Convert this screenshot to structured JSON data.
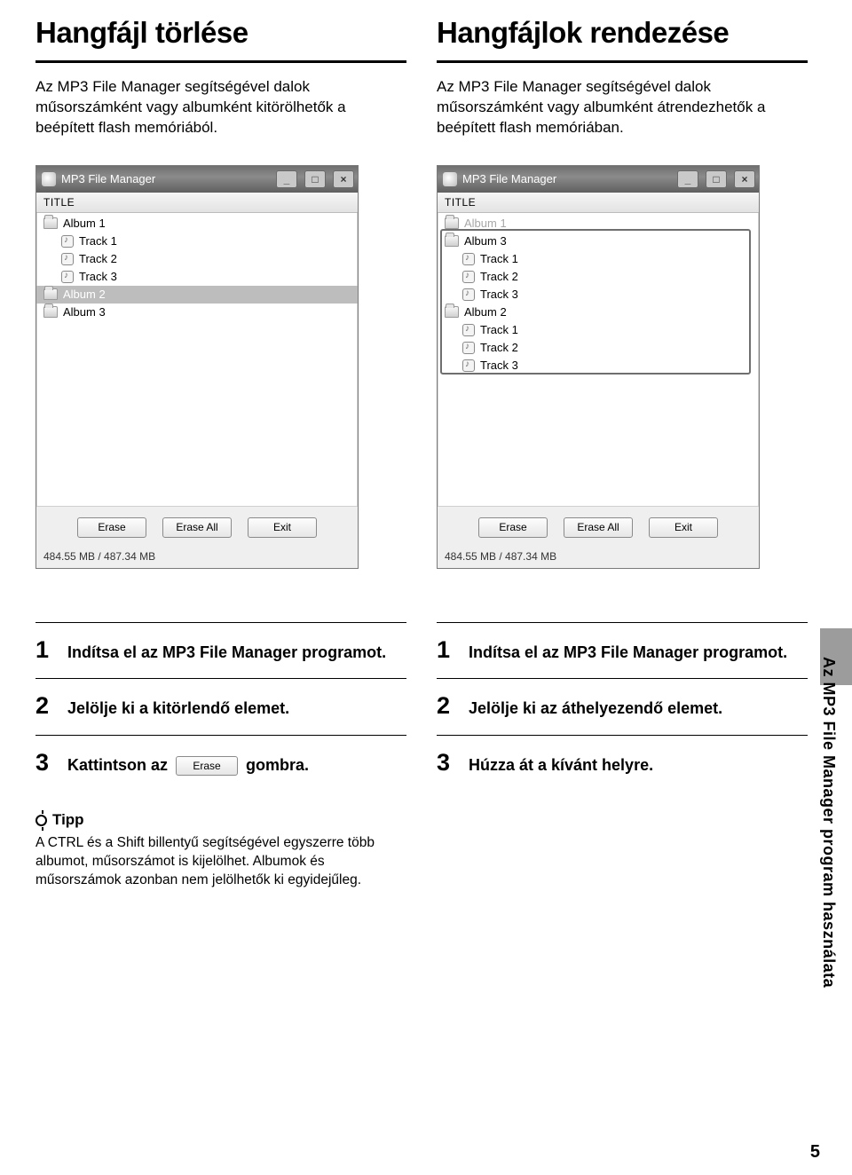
{
  "left": {
    "heading": "Hangfájl törlése",
    "intro": "Az MP3 File Manager segítségével dalok műsorszámként vagy albumként kitörölhetők a beépített flash memóriából."
  },
  "right": {
    "heading": "Hangfájlok rendezése",
    "intro": "Az MP3 File Manager segítségével dalok műsorszámként vagy albumként átrendezhetők a beépített flash memóriában."
  },
  "window": {
    "title": "MP3 File Manager",
    "column_header": "TITLE",
    "buttons": {
      "erase": "Erase",
      "erase_all": "Erase All",
      "exit": "Exit"
    },
    "status": "484.55 MB / 487.34 MB"
  },
  "tree_left": [
    {
      "type": "album",
      "label": "Album 1"
    },
    {
      "type": "track",
      "label": "Track 1"
    },
    {
      "type": "track",
      "label": "Track 2"
    },
    {
      "type": "track",
      "label": "Track 3"
    },
    {
      "type": "album",
      "label": "Album 2",
      "selected": true
    },
    {
      "type": "album",
      "label": "Album 3"
    }
  ],
  "tree_right": [
    {
      "type": "album",
      "label": "Album 1",
      "dim": true
    },
    {
      "type": "album",
      "label": "Album 3"
    },
    {
      "type": "track",
      "label": "Track 1"
    },
    {
      "type": "track",
      "label": "Track 2"
    },
    {
      "type": "track",
      "label": "Track 3"
    },
    {
      "type": "album",
      "label": "Album 2"
    },
    {
      "type": "track",
      "label": "Track 1"
    },
    {
      "type": "track",
      "label": "Track 2"
    },
    {
      "type": "track",
      "label": "Track 3"
    }
  ],
  "steps_left": {
    "s1": "Indítsa el az MP3 File Manager programot.",
    "s2": "Jelölje ki a kitörlendő elemet.",
    "s3_a": "Kattintson az",
    "s3_btn": "Erase",
    "s3_b": "gombra."
  },
  "steps_right": {
    "s1": "Indítsa el az MP3 File Manager programot.",
    "s2": "Jelölje ki az áthelyezendő elemet.",
    "s3": "Húzza át a kívánt helyre."
  },
  "tip": {
    "label": "Tipp",
    "body": "A CTRL és a Shift billentyű segítségével egyszerre több albumot, műsorszámot is kijelölhet. Albumok és műsorszámok azonban nem jelölhetők ki egyidejűleg."
  },
  "sidetext": "Az MP3 File Manager program használata",
  "page_number": "5",
  "colors": {
    "text": "#000000",
    "rule": "#000000",
    "win_border": "#7a7a7a",
    "titlebar_grad_top": "#6f6f6f",
    "titlebar_grad_bot": "#5f5f5f",
    "sel_bg": "#bdbdbd",
    "btn_border": "#8a8a8a",
    "panel_bg": "#efefef",
    "side_tab": "#9c9c9c"
  }
}
